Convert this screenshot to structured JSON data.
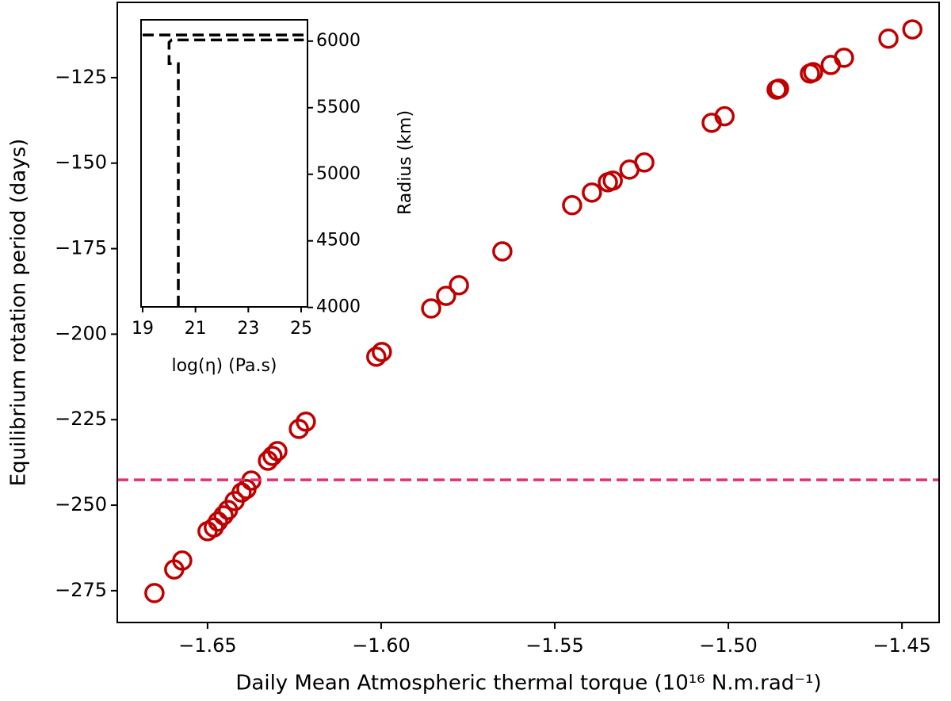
{
  "chart_data": [
    {
      "type": "scatter",
      "x_label": "Daily Mean Atmospheric thermal torque (10¹⁶ N.m.rad⁻¹)",
      "y_label": "Equilibrium rotation period (days)",
      "color": "#c00000",
      "x": [
        -1.6653,
        -1.6596,
        -1.6573,
        -1.65,
        -1.6482,
        -1.647,
        -1.6454,
        -1.6441,
        -1.6422,
        -1.6402,
        -1.6388,
        -1.6374,
        -1.6326,
        -1.6313,
        -1.6299,
        -1.6237,
        -1.6217,
        -1.6014,
        -1.5998,
        -1.5856,
        -1.5813,
        -1.5776,
        -1.5651,
        -1.545,
        -1.5393,
        -1.5347,
        -1.5333,
        -1.5285,
        -1.5242,
        -1.5048,
        -1.5011,
        -1.4861,
        -1.4854,
        -1.4765,
        -1.4756,
        -1.4705,
        -1.4667,
        -1.4539,
        -1.447
      ],
      "values": [
        -275.7,
        -268.8,
        -266.2,
        -257.6,
        -256.5,
        -254.8,
        -253.0,
        -251.4,
        -248.8,
        -246.3,
        -245.3,
        -242.8,
        -237.0,
        -235.6,
        -234.2,
        -227.7,
        -225.6,
        -206.6,
        -205.2,
        -192.5,
        -188.8,
        -185.7,
        -175.8,
        -162.3,
        -158.6,
        -155.6,
        -155.1,
        -151.9,
        -149.8,
        -138.2,
        -136.3,
        -128.5,
        -128.2,
        -123.8,
        -123.4,
        -121.3,
        -119.2,
        -113.6,
        -110.9
      ],
      "hline": {
        "value": -242.6,
        "color": "#e0336f"
      },
      "xlim": [
        -1.676,
        -1.4393
      ],
      "ylim": [
        -284.3,
        -103
      ],
      "xticks": [
        {
          "value": -1.65,
          "label": "−1.65"
        },
        {
          "value": -1.6,
          "label": "−1.60"
        },
        {
          "value": -1.55,
          "label": "−1.55"
        },
        {
          "value": -1.5,
          "label": "−1.50"
        },
        {
          "value": -1.45,
          "label": "−1.45"
        }
      ],
      "yticks": [
        {
          "value": -275,
          "label": "−275"
        },
        {
          "value": -250,
          "label": "−250"
        },
        {
          "value": -225,
          "label": "−225"
        },
        {
          "value": -200,
          "label": "−200"
        },
        {
          "value": -175,
          "label": "−175"
        },
        {
          "value": -150,
          "label": "−150"
        },
        {
          "value": -125,
          "label": "−125"
        }
      ]
    },
    {
      "type": "line",
      "x_label": "log(η) (Pa.s)",
      "y_label": "Radius (km)",
      "series": [
        {
          "color": "#000000",
          "x": [
            19.0,
            25.1
          ],
          "values": [
            6046,
            6046
          ]
        },
        {
          "color": "#000000",
          "x": [
            20.35,
            20.35,
            20.0,
            20.0,
            20.1,
            25.1
          ],
          "values": [
            4005,
            5831,
            5831,
            5991,
            6009,
            6009
          ]
        }
      ],
      "xlim": [
        18.94,
        25.24
      ],
      "ylim": [
        4004,
        6160
      ],
      "xticks": [
        19,
        21,
        23,
        25
      ],
      "yticks": [
        4000,
        4500,
        5000,
        5500,
        6000
      ]
    }
  ]
}
